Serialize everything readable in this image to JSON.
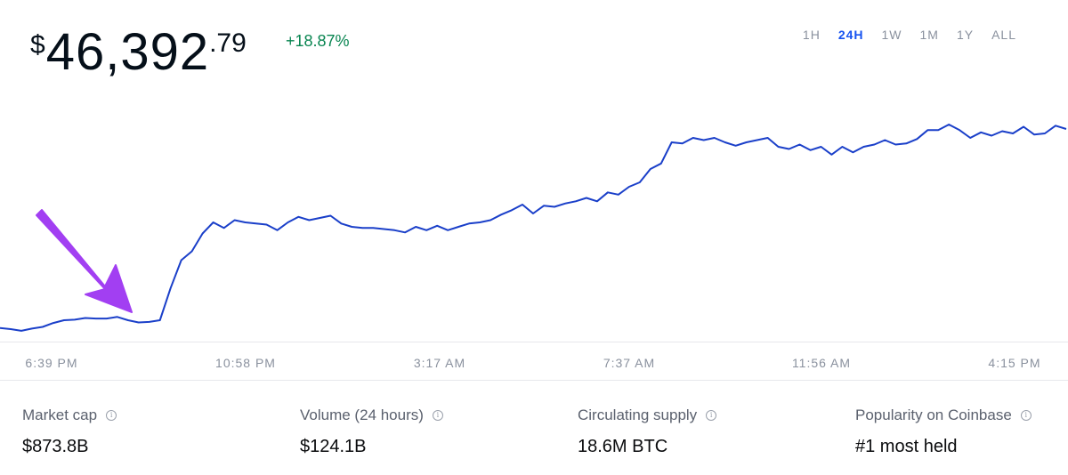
{
  "price": {
    "currency": "$",
    "integer": "46,392",
    "cents": ".79"
  },
  "change": "+18.87%",
  "time_ranges": [
    {
      "label": "1H",
      "active": false
    },
    {
      "label": "24H",
      "active": true
    },
    {
      "label": "1W",
      "active": false
    },
    {
      "label": "1M",
      "active": false
    },
    {
      "label": "1Y",
      "active": false
    },
    {
      "label": "ALL",
      "active": false
    }
  ],
  "chart_data": {
    "type": "line",
    "series": [
      {
        "color": "#1a3fc9",
        "values": [
          9,
          8,
          6.5,
          8.5,
          10,
          13.5,
          16,
          16.5,
          18,
          17.5,
          17.5,
          19,
          16,
          14,
          14.5,
          16,
          45,
          70,
          78,
          94,
          104,
          99,
          106,
          104,
          103,
          102,
          97,
          104,
          109,
          106,
          108,
          110,
          103,
          100,
          99,
          99,
          98,
          97,
          95,
          100,
          97,
          101,
          97,
          100,
          103,
          104,
          106,
          111,
          115,
          120,
          112,
          119,
          118,
          121,
          123,
          126,
          123,
          131,
          129,
          136,
          140,
          152,
          157,
          176,
          175,
          180,
          178,
          180,
          176,
          173,
          176,
          178,
          180,
          172,
          170,
          174,
          169,
          172,
          165,
          172,
          167,
          172,
          174,
          178,
          174,
          175,
          179,
          187,
          187,
          192,
          187,
          180,
          185,
          182,
          186,
          184,
          190,
          183,
          184,
          191,
          188
        ]
      }
    ],
    "x_labels": [
      "6:39 PM",
      "10:58 PM",
      "3:17 AM",
      "7:37 AM",
      "11:56 AM",
      "4:15 PM"
    ],
    "grid": false,
    "legend": "none"
  },
  "annotation_arrow_color": "#a23ff2",
  "stats": [
    {
      "label": "Market cap",
      "value": "$873.8B"
    },
    {
      "label": "Volume (24 hours)",
      "value": "$124.1B"
    },
    {
      "label": "Circulating supply",
      "value": "18.6M BTC"
    },
    {
      "label": "Popularity on Coinbase",
      "value": "#1 most held"
    }
  ]
}
